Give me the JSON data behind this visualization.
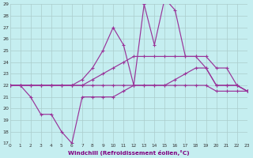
{
  "bg_color": "#c5eef0",
  "grid_color": "#aacccc",
  "line_color": "#993399",
  "xlim": [
    0,
    23
  ],
  "ylim": [
    17,
    29
  ],
  "yticks": [
    17,
    18,
    19,
    20,
    21,
    22,
    23,
    24,
    25,
    26,
    27,
    28,
    29
  ],
  "xticks": [
    0,
    1,
    2,
    3,
    4,
    5,
    6,
    7,
    8,
    9,
    10,
    11,
    12,
    13,
    14,
    15,
    16,
    17,
    18,
    19,
    20,
    21,
    22,
    23
  ],
  "xlabel": "Windchill (Refroidissement éolien,°C)",
  "line_spiky_x": [
    0,
    1,
    2,
    3,
    4,
    5,
    6,
    7,
    8,
    9,
    10,
    11,
    12,
    13,
    14,
    15,
    16,
    17,
    18,
    19,
    20,
    21,
    22,
    23
  ],
  "line_spiky_y": [
    22,
    22,
    22,
    22,
    22,
    22,
    22,
    22.5,
    23.5,
    25,
    27,
    25.5,
    22,
    29,
    25.5,
    29.5,
    28.5,
    24.5,
    24.5,
    23.5,
    22,
    22,
    22,
    21.5
  ],
  "line_upper_x": [
    0,
    1,
    2,
    3,
    4,
    5,
    6,
    7,
    8,
    9,
    10,
    11,
    12,
    13,
    14,
    15,
    16,
    17,
    18,
    19,
    20,
    21,
    22,
    23
  ],
  "line_upper_y": [
    22,
    22,
    22,
    22,
    22,
    22,
    22,
    22,
    22.5,
    23,
    23.5,
    24,
    24.5,
    24.5,
    24.5,
    24.5,
    24.5,
    24.5,
    24.5,
    24.5,
    23.5,
    23.5,
    22,
    21.5
  ],
  "line_mid_x": [
    0,
    1,
    2,
    3,
    4,
    5,
    6,
    7,
    8,
    9,
    10,
    11,
    12,
    13,
    14,
    15,
    16,
    17,
    18,
    19,
    20,
    21,
    22,
    23
  ],
  "line_mid_y": [
    22,
    22,
    22,
    22,
    22,
    22,
    22,
    22,
    22,
    22,
    22,
    22,
    22,
    22,
    22,
    22,
    22.5,
    23,
    23.5,
    23.5,
    22,
    22,
    22,
    21.5
  ],
  "line_lower_x": [
    0,
    1,
    2,
    3,
    4,
    5,
    6,
    7,
    8,
    9,
    10,
    11,
    12,
    13,
    14,
    15,
    16,
    17,
    18,
    19,
    20,
    21,
    22,
    23
  ],
  "line_lower_y": [
    22,
    22,
    21,
    19.5,
    19.5,
    18,
    17,
    21,
    21,
    21,
    21,
    21.5,
    22,
    22,
    22,
    22,
    22,
    22,
    22,
    22,
    21.5,
    21.5,
    21.5,
    21.5
  ]
}
